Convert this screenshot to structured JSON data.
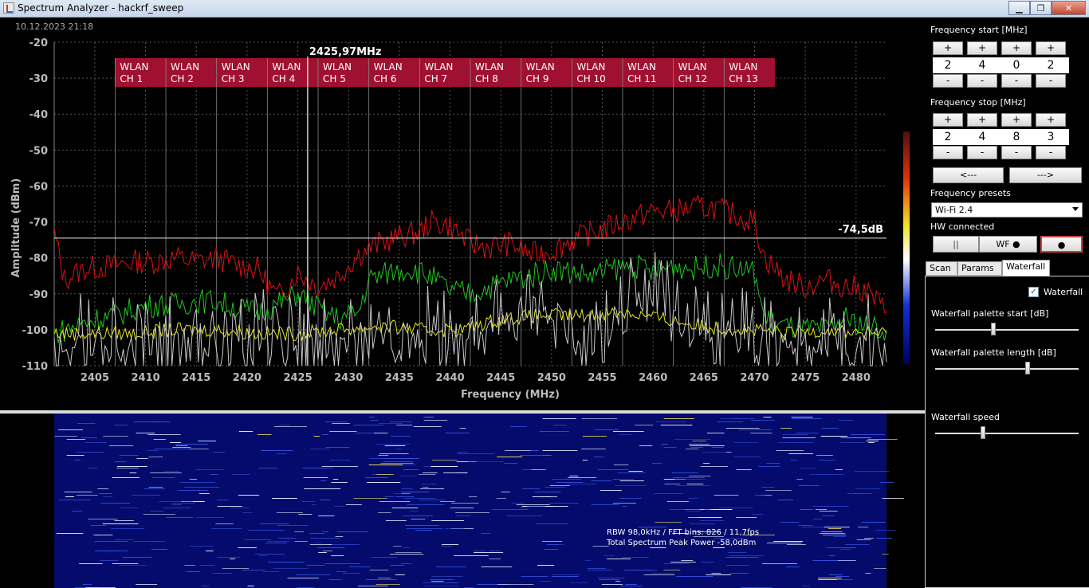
{
  "window": {
    "title": "Spectrum Analyzer - hackrf_sweep",
    "minimize": "▁",
    "maximize": "❐",
    "close": "✕"
  },
  "timestamp": "10.12.2023 21:18",
  "chart_data": {
    "type": "line",
    "title": "",
    "xlabel": "Frequency (MHz)",
    "ylabel": "Amplitude (dBm)",
    "xlim": [
      2401,
      2483
    ],
    "ylim": [
      -110,
      -20
    ],
    "xticks": [
      2405,
      2410,
      2415,
      2420,
      2425,
      2430,
      2435,
      2440,
      2445,
      2450,
      2455,
      2460,
      2465,
      2470,
      2475,
      2480
    ],
    "yticks": [
      -20,
      -30,
      -40,
      -50,
      -60,
      -70,
      -80,
      -90,
      -100,
      -110
    ],
    "grid": true,
    "cursor": {
      "freq": 2425.97,
      "label": "2425,97MHz"
    },
    "threshold": {
      "value": -74.5,
      "label": "-74,5dB"
    },
    "wlan_channels": [
      {
        "line1": "WLAN",
        "line2": "CH 1",
        "start": 2407,
        "end": 2412
      },
      {
        "line1": "WLAN",
        "line2": "CH 2",
        "start": 2412,
        "end": 2417
      },
      {
        "line1": "WLAN",
        "line2": "CH 3",
        "start": 2417,
        "end": 2422
      },
      {
        "line1": "WLAN",
        "line2": "CH 4",
        "start": 2422,
        "end": 2427
      },
      {
        "line1": "WLAN",
        "line2": "CH 5",
        "start": 2427,
        "end": 2432
      },
      {
        "line1": "WLAN",
        "line2": "CH 6",
        "start": 2432,
        "end": 2437
      },
      {
        "line1": "WLAN",
        "line2": "CH 7",
        "start": 2437,
        "end": 2442
      },
      {
        "line1": "WLAN",
        "line2": "CH 8",
        "start": 2442,
        "end": 2447
      },
      {
        "line1": "WLAN",
        "line2": "CH 9",
        "start": 2447,
        "end": 2452
      },
      {
        "line1": "WLAN",
        "line2": "CH 10",
        "start": 2452,
        "end": 2457
      },
      {
        "line1": "WLAN",
        "line2": "CH 11",
        "start": 2457,
        "end": 2462
      },
      {
        "line1": "WLAN",
        "line2": "CH 12",
        "start": 2462,
        "end": 2467
      },
      {
        "line1": "WLAN",
        "line2": "CH 13",
        "start": 2467,
        "end": 2472
      }
    ],
    "series": [
      {
        "color": "#e01010",
        "x": [
          2401,
          2402,
          2404,
          2407,
          2409,
          2411,
          2413,
          2415,
          2417,
          2419,
          2421,
          2423,
          2425,
          2427,
          2429,
          2431,
          2433,
          2435,
          2437,
          2438,
          2440,
          2442,
          2444,
          2446,
          2448,
          2450,
          2452,
          2454,
          2456,
          2458,
          2460,
          2462,
          2464,
          2466,
          2468,
          2470,
          2471,
          2473,
          2475,
          2477,
          2479,
          2481,
          2483
        ],
        "y": [
          -73,
          -86,
          -83,
          -82,
          -81,
          -81,
          -80,
          -81,
          -80,
          -82,
          -83,
          -91,
          -84,
          -88,
          -85,
          -79,
          -76,
          -74,
          -73,
          -70,
          -71,
          -76,
          -77,
          -76,
          -79,
          -78,
          -75,
          -73,
          -71,
          -69,
          -67,
          -67,
          -66,
          -66,
          -68,
          -70,
          -80,
          -86,
          -88,
          -86,
          -88,
          -89,
          -95
        ]
      },
      {
        "color": "#1ec81e",
        "x": [
          2401,
          2403,
          2405,
          2407,
          2409,
          2411,
          2413,
          2415,
          2417,
          2419,
          2421,
          2423,
          2425,
          2427,
          2429,
          2431,
          2432,
          2434,
          2436,
          2438,
          2440,
          2442,
          2444,
          2446,
          2448,
          2450,
          2452,
          2454,
          2456,
          2458,
          2460,
          2462,
          2464,
          2466,
          2468,
          2470,
          2471,
          2473,
          2475,
          2477,
          2479,
          2481,
          2483
        ],
        "y": [
          -101,
          -99,
          -97,
          -96,
          -94,
          -93,
          -93,
          -92,
          -92,
          -94,
          -95,
          -93,
          -90,
          -94,
          -97,
          -95,
          -86,
          -84,
          -83,
          -85,
          -89,
          -90,
          -88,
          -86,
          -85,
          -83,
          -84,
          -85,
          -83,
          -82,
          -84,
          -82,
          -83,
          -82,
          -83,
          -84,
          -97,
          -99,
          -100,
          -100,
          -97,
          -99,
          -100
        ]
      },
      {
        "color": "#e8e81a",
        "x": [
          2401,
          2405,
          2409,
          2413,
          2417,
          2421,
          2425,
          2429,
          2433,
          2437,
          2441,
          2445,
          2449,
          2453,
          2457,
          2461,
          2465,
          2469,
          2473,
          2477,
          2481,
          2483
        ],
        "y": [
          -101,
          -101,
          -101,
          -100,
          -100,
          -101,
          -101,
          -100,
          -99,
          -100,
          -100,
          -97,
          -96,
          -96,
          -95,
          -97,
          -99,
          -100,
          -101,
          -100,
          -101,
          -101
        ]
      },
      {
        "color": "#c8c8c8",
        "x": [
          2401,
          2404,
          2408,
          2412,
          2416,
          2420,
          2424,
          2428,
          2432,
          2436,
          2440,
          2444,
          2446,
          2448,
          2450,
          2452,
          2454,
          2458,
          2460,
          2462,
          2464,
          2468,
          2472,
          2476,
          2480,
          2483
        ],
        "y": [
          -108,
          -108,
          -107,
          -106,
          -108,
          -107,
          -106,
          -108,
          -106,
          -104,
          -108,
          -103,
          -100,
          -96,
          -99,
          -104,
          -108,
          -94,
          -90,
          -97,
          -104,
          -104,
          -108,
          -107,
          -108,
          -109
        ]
      }
    ]
  },
  "waterfall": {
    "info_line1": "RBW 98,0kHz / FFT bins: 826 / 11,7fps",
    "info_line2": "Total Spectrum Peak Power -58,0dBm"
  },
  "panel": {
    "freq_start_label": "Frequency start [MHz]",
    "freq_start_digits": [
      "2",
      "4",
      "0",
      "2"
    ],
    "freq_stop_label": "Frequency stop [MHz]",
    "freq_stop_digits": [
      "2",
      "4",
      "8",
      "3"
    ],
    "plus": "+",
    "minus": "-",
    "nav_left": "<---",
    "nav_right": "--->",
    "presets_label": "Frequency presets",
    "presets_value": "Wi-Fi 2.4",
    "hw_label": "HW connected",
    "pause_button": "||",
    "wf_button": "WF ●",
    "record_button": "●",
    "tabs": [
      "Scan",
      "Params",
      "Waterfall"
    ],
    "waterfall_checkbox_label": "Waterfall",
    "waterfall_checked": "✓",
    "palette_start_label": "Waterfall palette start [dB]",
    "palette_start_value": 0.4,
    "palette_length_label": "Waterfall palette length [dB]",
    "palette_length_value": 0.65,
    "speed_label": "Waterfall speed",
    "speed_value": 0.33
  }
}
